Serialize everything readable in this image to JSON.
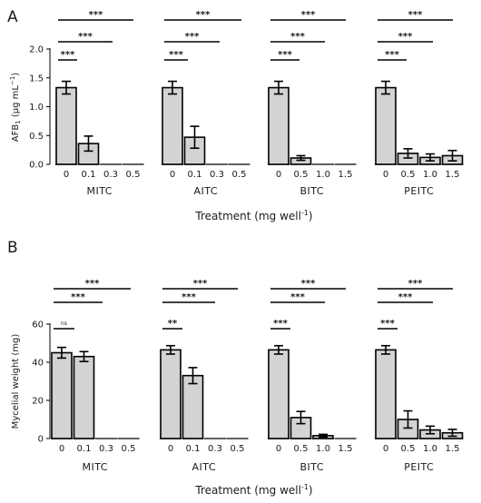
{
  "chart_data": [
    {
      "type": "bar",
      "panel_label": "A",
      "ylabel_prefix": "AFB",
      "ylabel_sub": "1",
      "ylabel_units": " (μg mL",
      "ylabel_sup": "−1",
      "ylabel_close": ")",
      "xlabel_main": "Treatment (mg well",
      "xlabel_sup": "-1",
      "xlabel_close": ")",
      "ylim": [
        0,
        2.0
      ],
      "yticks": [
        "0.0",
        "0.5",
        "1.0",
        "1.5",
        "2.0"
      ],
      "ytick_values": [
        0,
        0.5,
        1.0,
        1.5,
        2.0
      ],
      "groups": [
        {
          "name": "MITC",
          "doses": [
            "0",
            "0.1",
            "0.3",
            "0.5"
          ],
          "values": [
            1.33,
            0.36,
            0,
            0
          ],
          "errors": [
            0.11,
            0.13,
            0,
            0
          ],
          "significance": [
            {
              "label": "***",
              "from": "0",
              "to": "0.1"
            },
            {
              "label": "***",
              "from": "0",
              "to": "0.3"
            },
            {
              "label": "***",
              "from": "0",
              "to": "0.5"
            }
          ]
        },
        {
          "name": "AITC",
          "doses": [
            "0",
            "0.1",
            "0.3",
            "0.5"
          ],
          "values": [
            1.33,
            0.47,
            0,
            0
          ],
          "errors": [
            0.11,
            0.19,
            0,
            0
          ],
          "significance": [
            {
              "label": "***",
              "from": "0",
              "to": "0.1"
            },
            {
              "label": "***",
              "from": "0",
              "to": "0.3"
            },
            {
              "label": "***",
              "from": "0",
              "to": "0.5"
            }
          ]
        },
        {
          "name": "BITC",
          "doses": [
            "0",
            "0.5",
            "1.0",
            "1.5"
          ],
          "values": [
            1.33,
            0.11,
            0,
            0
          ],
          "errors": [
            0.11,
            0.04,
            0,
            0
          ],
          "significance": [
            {
              "label": "***",
              "from": "0",
              "to": "0.5"
            },
            {
              "label": "***",
              "from": "0",
              "to": "1.0"
            },
            {
              "label": "***",
              "from": "0",
              "to": "1.5"
            }
          ]
        },
        {
          "name": "PEITC",
          "doses": [
            "0",
            "0.5",
            "1.0",
            "1.5"
          ],
          "values": [
            1.33,
            0.19,
            0.12,
            0.15
          ],
          "errors": [
            0.11,
            0.08,
            0.06,
            0.09
          ],
          "significance": [
            {
              "label": "***",
              "from": "0",
              "to": "0.5"
            },
            {
              "label": "***",
              "from": "0",
              "to": "1.0"
            },
            {
              "label": "***",
              "from": "0",
              "to": "1.5"
            }
          ]
        }
      ]
    },
    {
      "type": "bar",
      "panel_label": "B",
      "ylabel": "Mycelial weight (mg)",
      "xlabel_main": "Treatment (mg well",
      "xlabel_sup": "-1",
      "xlabel_close": ")",
      "ylim": [
        0,
        60
      ],
      "yticks": [
        "0",
        "20",
        "40",
        "60"
      ],
      "ytick_values": [
        0,
        20,
        40,
        60
      ],
      "groups": [
        {
          "name": "MITC",
          "doses": [
            "0",
            "0.1",
            "0.3",
            "0.5"
          ],
          "values": [
            45,
            43,
            0,
            0
          ],
          "errors": [
            2.8,
            2.6,
            0,
            0
          ],
          "significance": [
            {
              "label": "ns",
              "from": "0",
              "to": "0.1"
            },
            {
              "label": "***",
              "from": "0",
              "to": "0.3"
            },
            {
              "label": "***",
              "from": "0",
              "to": "0.5"
            }
          ]
        },
        {
          "name": "AITC",
          "doses": [
            "0",
            "0.1",
            "0.3",
            "0.5"
          ],
          "values": [
            46.5,
            33,
            0,
            0
          ],
          "errors": [
            2.2,
            4.2,
            0,
            0
          ],
          "significance": [
            {
              "label": "**",
              "from": "0",
              "to": "0.1"
            },
            {
              "label": "***",
              "from": "0",
              "to": "0.3"
            },
            {
              "label": "***",
              "from": "0",
              "to": "0.5"
            }
          ]
        },
        {
          "name": "BITC",
          "doses": [
            "0",
            "0.5",
            "1.0",
            "1.5"
          ],
          "values": [
            46.5,
            11,
            1.5,
            0
          ],
          "errors": [
            2.2,
            3.2,
            0.7,
            0
          ],
          "significance": [
            {
              "label": "***",
              "from": "0",
              "to": "0.5"
            },
            {
              "label": "***",
              "from": "0",
              "to": "1.0"
            },
            {
              "label": "***",
              "from": "0",
              "to": "1.5"
            }
          ]
        },
        {
          "name": "PEITC",
          "doses": [
            "0",
            "0.5",
            "1.0",
            "1.5"
          ],
          "values": [
            46.5,
            10,
            4.5,
            3
          ],
          "errors": [
            2.2,
            4.5,
            2.0,
            1.8
          ],
          "significance": [
            {
              "label": "***",
              "from": "0",
              "to": "0.5"
            },
            {
              "label": "***",
              "from": "0",
              "to": "1.0"
            },
            {
              "label": "***",
              "from": "0",
              "to": "1.5"
            }
          ]
        }
      ]
    }
  ],
  "colors": {
    "bar_fill": "#d3d3d3",
    "bar_stroke": "#000000",
    "text": "#1a1a1a"
  }
}
